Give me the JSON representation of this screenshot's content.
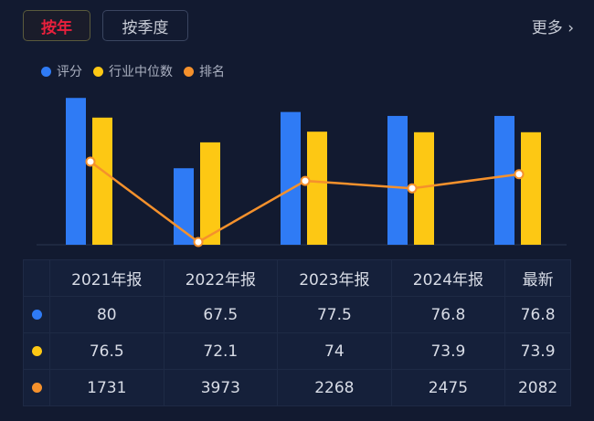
{
  "tabs": [
    {
      "label": "按年",
      "active": true
    },
    {
      "label": "按季度",
      "active": false
    }
  ],
  "more_label": "更多 ›",
  "colors": {
    "score": "#2f7bf5",
    "median": "#fdc814",
    "rank": "#f5912c"
  },
  "chart_data": {
    "type": "bar",
    "categories": [
      "2021年报",
      "2022年报",
      "2023年报",
      "2024年报",
      "最新"
    ],
    "series": [
      {
        "name": "评分",
        "type": "bar",
        "values": [
          80,
          67.5,
          77.5,
          76.8,
          76.8
        ]
      },
      {
        "name": "行业中位数",
        "type": "bar",
        "values": [
          76.5,
          72.1,
          74,
          73.9,
          73.9
        ]
      },
      {
        "name": "排名",
        "type": "line",
        "values": [
          1731,
          3973,
          2268,
          2475,
          2082
        ],
        "inverted": true
      }
    ],
    "legend": "top-left",
    "grid": false
  },
  "table": {
    "header": [
      "2021年报",
      "2022年报",
      "2023年报",
      "2024年报",
      "最新"
    ],
    "rows": [
      {
        "color": "#2f7bf5",
        "values": [
          "80",
          "67.5",
          "77.5",
          "76.8",
          "76.8"
        ]
      },
      {
        "color": "#fdc814",
        "values": [
          "76.5",
          "72.1",
          "74",
          "73.9",
          "73.9"
        ]
      },
      {
        "color": "#f5912c",
        "values": [
          "1731",
          "3973",
          "2268",
          "2475",
          "2082"
        ]
      }
    ]
  }
}
